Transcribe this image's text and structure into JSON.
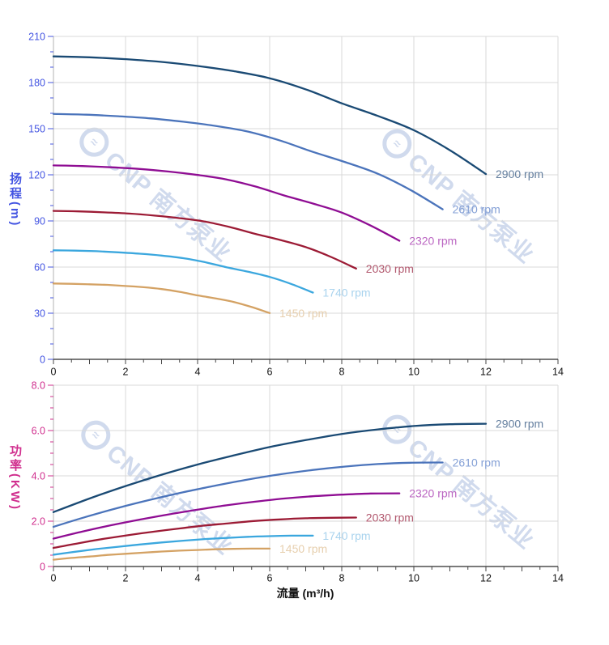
{
  "watermark": {
    "text": "CNP 南方泵业"
  },
  "axis_titles": {
    "head_main": "扬程",
    "head_unit": "(m)",
    "power_main": "功率",
    "power_unit": "(KW)",
    "flow": "流量 (m³/h)"
  },
  "colors": {
    "head_axis": "#4455e2",
    "power_axis": "#d02f8e",
    "x_axis_line": "#2b2b2b",
    "x_tick": "#444444",
    "x_label": "#111111",
    "grid": "#d8d8d8",
    "spine": "#b3b3b3"
  },
  "chart_data": [
    {
      "type": "line",
      "title": "",
      "xlabel": "流量 (m³/h)",
      "ylabel": "扬程 (m)",
      "xlim": [
        0,
        14
      ],
      "ylim": [
        0,
        210
      ],
      "grid": true,
      "axis_color": "#4455e2",
      "x_ticks": {
        "values": [
          0,
          2,
          4,
          6,
          8,
          10,
          12,
          14
        ],
        "labels": [
          "0",
          "2",
          "4",
          "6",
          "8",
          "10",
          "12",
          "14"
        ],
        "minor_step": 0.5
      },
      "y_ticks": {
        "values": [
          0,
          30,
          60,
          90,
          120,
          150,
          180,
          210
        ],
        "labels": [
          "0",
          "30",
          "60",
          "90",
          "120",
          "150",
          "180",
          "210"
        ],
        "minor_step": 10
      },
      "series": [
        {
          "name": "2900 rpm",
          "color": "#1a4a74",
          "label_color": "#647f9f",
          "x": [
            0,
            1,
            2,
            3,
            4,
            5,
            6,
            7,
            8,
            9,
            10,
            11,
            12
          ],
          "y": [
            197,
            196.4,
            195.2,
            193.4,
            190.8,
            187.4,
            182.8,
            175.6,
            166.5,
            158.3,
            149,
            136,
            120.5
          ]
        },
        {
          "name": "2610 rpm",
          "color": "#4b74bb",
          "label_color": "#84a0d6",
          "x": [
            0,
            0.9,
            1.8,
            2.7,
            3.6,
            4.5,
            5.4,
            6.3,
            7.2,
            8.1,
            9,
            9.9,
            10.8
          ],
          "y": [
            159.6,
            159.1,
            158.1,
            156.7,
            154.5,
            151.8,
            148.1,
            142.2,
            134.9,
            128.2,
            120.7,
            110.2,
            97.6
          ]
        },
        {
          "name": "2320 rpm",
          "color": "#8f0d93",
          "label_color": "#bb66c2",
          "x": [
            0,
            0.8,
            1.6,
            2.4,
            3.2,
            4,
            4.8,
            5.6,
            6.4,
            7.2,
            8,
            8.8,
            9.6
          ],
          "y": [
            126.1,
            125.7,
            124.9,
            123.8,
            122.1,
            119.9,
            117,
            112.4,
            106.6,
            101.3,
            95.4,
            87,
            77.1
          ]
        },
        {
          "name": "2030 rpm",
          "color": "#9c1b35",
          "label_color": "#b2596f",
          "x": [
            0,
            0.7,
            1.4,
            2.1,
            2.8,
            3.5,
            4.2,
            4.9,
            5.6,
            6.3,
            7,
            7.7,
            8.4
          ],
          "y": [
            96.5,
            96.2,
            95.6,
            94.8,
            93.5,
            91.8,
            89.6,
            86,
            81.6,
            77.6,
            73,
            66.6,
            59
          ]
        },
        {
          "name": "1740 rpm",
          "color": "#3ba7de",
          "label_color": "#a9d3ee",
          "x": [
            0,
            0.6,
            1.2,
            1.8,
            2.4,
            3,
            3.6,
            4.2,
            4.8,
            5.4,
            6,
            6.6,
            7.2
          ],
          "y": [
            70.9,
            70.7,
            70.3,
            69.6,
            68.7,
            67.5,
            65.8,
            63.2,
            59.9,
            57,
            53.6,
            49,
            43.4
          ]
        },
        {
          "name": "1450 rpm",
          "color": "#d4a264",
          "label_color": "#e7cfae",
          "x": [
            0,
            0.5,
            1,
            1.5,
            2,
            2.5,
            3,
            3.5,
            4,
            4.5,
            5,
            5.5,
            6
          ],
          "y": [
            49.3,
            49.1,
            48.8,
            48.4,
            47.7,
            46.9,
            45.7,
            43.9,
            41.6,
            39.6,
            37.3,
            34,
            30.1
          ]
        }
      ]
    },
    {
      "type": "line",
      "title": "",
      "xlabel": "流量 (m³/h)",
      "ylabel": "功率 (KW)",
      "xlim": [
        0,
        14
      ],
      "ylim": [
        0,
        8
      ],
      "grid": true,
      "axis_color": "#d02f8e",
      "x_ticks": {
        "values": [
          0,
          2,
          4,
          6,
          8,
          10,
          12,
          14
        ],
        "labels": [
          "0",
          "2",
          "4",
          "6",
          "8",
          "10",
          "12",
          "14"
        ],
        "minor_step": 0.5
      },
      "y_ticks": {
        "values": [
          0,
          2,
          4,
          6,
          8
        ],
        "labels": [
          "0",
          "2.0",
          "4.0",
          "6.0",
          "8.0"
        ],
        "minor_step": 0.5
      },
      "series": [
        {
          "name": "2900 rpm",
          "color": "#1a4a74",
          "label_color": "#647f9f",
          "x": [
            0,
            1,
            2,
            3,
            4,
            5,
            6,
            7,
            8,
            9,
            10,
            11,
            12
          ],
          "y": [
            2.4,
            3,
            3.55,
            4.05,
            4.5,
            4.9,
            5.27,
            5.58,
            5.85,
            6.05,
            6.2,
            6.28,
            6.3
          ]
        },
        {
          "name": "2610 rpm",
          "color": "#4b74bb",
          "label_color": "#84a0d6",
          "x": [
            0,
            0.9,
            1.8,
            2.7,
            3.6,
            4.5,
            5.4,
            6.3,
            7.2,
            8.1,
            9,
            9.9,
            10.8
          ],
          "y": [
            1.75,
            2.19,
            2.59,
            2.95,
            3.28,
            3.57,
            3.84,
            4.07,
            4.26,
            4.41,
            4.52,
            4.58,
            4.59
          ]
        },
        {
          "name": "2320 rpm",
          "color": "#8f0d93",
          "label_color": "#bb66c2",
          "x": [
            0,
            0.8,
            1.6,
            2.4,
            3.2,
            4,
            4.8,
            5.6,
            6.4,
            7.2,
            8,
            8.8,
            9.6
          ],
          "y": [
            1.23,
            1.54,
            1.82,
            2.07,
            2.3,
            2.51,
            2.7,
            2.86,
            3,
            3.1,
            3.17,
            3.22,
            3.23
          ]
        },
        {
          "name": "2030 rpm",
          "color": "#9c1b35",
          "label_color": "#b2596f",
          "x": [
            0,
            0.7,
            1.4,
            2.1,
            2.8,
            3.5,
            4.2,
            4.9,
            5.6,
            6.3,
            7,
            7.7,
            8.4
          ],
          "y": [
            0.82,
            1.03,
            1.22,
            1.39,
            1.54,
            1.68,
            1.81,
            1.91,
            2.01,
            2.08,
            2.13,
            2.15,
            2.16
          ]
        },
        {
          "name": "1740 rpm",
          "color": "#3ba7de",
          "label_color": "#a9d3ee",
          "x": [
            0,
            0.6,
            1.2,
            1.8,
            2.4,
            3,
            3.6,
            4.2,
            4.8,
            5.4,
            6,
            6.6,
            7.2
          ],
          "y": [
            0.52,
            0.65,
            0.77,
            0.87,
            0.97,
            1.06,
            1.14,
            1.21,
            1.26,
            1.31,
            1.34,
            1.36,
            1.36
          ]
        },
        {
          "name": "1450 rpm",
          "color": "#d4a264",
          "label_color": "#e7cfae",
          "x": [
            0,
            0.5,
            1,
            1.5,
            2,
            2.5,
            3,
            3.5,
            4,
            4.5,
            5,
            5.5,
            6
          ],
          "y": [
            0.3,
            0.38,
            0.44,
            0.51,
            0.56,
            0.61,
            0.66,
            0.7,
            0.73,
            0.76,
            0.78,
            0.79,
            0.79
          ]
        }
      ]
    }
  ]
}
